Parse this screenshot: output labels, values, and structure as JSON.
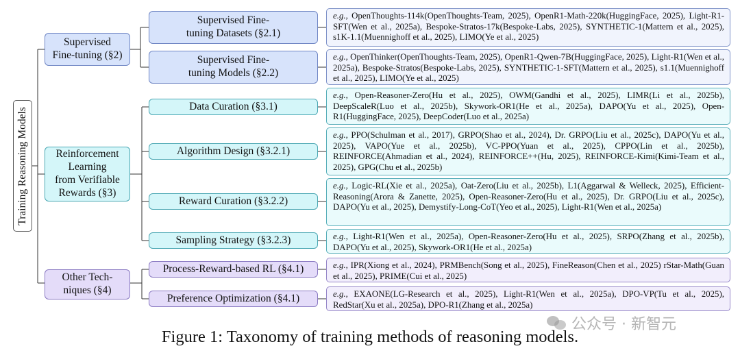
{
  "root": {
    "label": "Training Reasoning Models"
  },
  "categories": {
    "sft": {
      "label_line1": "Supervised",
      "label_line2": "Fine-tuning (§2)"
    },
    "rl": {
      "line1": "Reinforcement",
      "line2": "Learning",
      "line3": "from Verifiable",
      "line4": "Rewards (§3)"
    },
    "other": {
      "line1": "Other Tech-",
      "line2": "niques (§4)"
    }
  },
  "nodes": [
    {
      "line1": "Supervised Fine-",
      "line2": "tuning Datasets (§2.1)",
      "eg": "e.g.,",
      "refs": " OpenThoughts-114k(OpenThoughts-Team, 2025), OpenR1-Math-220k(HuggingFace, 2025), Light-R1-SFT(Wen et al., 2025a), Bespoke-Stratos-17k(Bespoke-Labs, 2025), SYNTHETIC-1(Mattern et al., 2025), s1K-1.1(Muennighoff et al., 2025), LIMO(Ye et al., 2025)"
    },
    {
      "line1": "Supervised Fine-",
      "line2": "tuning Models (§2.2)",
      "eg": "e.g.,",
      "refs": " OpenThinker(OpenThoughts-Team, 2025), OpenR1-Qwen-7B(HuggingFace, 2025), Light-R1(Wen et al., 2025a), Bespoke-Stratos(Bespoke-Labs, 2025), SYNTHETIC-1-SFT(Mattern et al., 2025), s1.1(Muennighoff et al., 2025), LIMO(Ye et al., 2025)"
    },
    {
      "line1": "Data Curation (§3.1)",
      "eg": "e.g.,",
      "refs": " Open-Reasoner-Zero(Hu et al., 2025), OWM(Gandhi et al., 2025), LIMR(Li et al., 2025b), DeepScaleR(Luo et al., 2025b), Skywork-OR1(He et al., 2025a), DAPO(Yu et al., 2025), Open-R1(HuggingFace, 2025), DeepCoder(Luo et al., 2025a)"
    },
    {
      "line1": "Algorithm Design (§3.2.1)",
      "eg": "e.g.,",
      "refs": " PPO(Schulman et al., 2017), GRPO(Shao et al., 2024), Dr. GRPO(Liu et al., 2025c), DAPO(Yu et al., 2025), VAPO(Yue et al., 2025b), VC-PPO(Yuan et al., 2025), CPPO(Lin et al., 2025b), REINFORCE(Ahmadian et al., 2024), REINFORCE++(Hu, 2025), REINFORCE-Kimi(Kimi-Team et al., 2025), GPG(Chu et al., 2025b)"
    },
    {
      "line1": "Reward Curation (§3.2.2)",
      "eg": "e.g.,",
      "refs": " Logic-RL(Xie et al., 2025a), Oat-Zero(Liu et al., 2025b), L1(Aggarwal & Welleck, 2025), Efficient-Reasoning(Arora & Zanette, 2025), Open-Reasoner-Zero(Hu et al., 2025), Dr. GRPO(Liu et al., 2025c), DAPO(Yu et al., 2025), Demystify-Long-CoT(Yeo et al., 2025), Light-R1(Wen et al., 2025a)"
    },
    {
      "line1": "Sampling Strategy (§3.2.3)",
      "eg": "e.g.,",
      "refs": " Light-R1(Wen et al., 2025a), Open-Reasoner-Zero(Hu et al., 2025), SRPO(Zhang et al., 2025b), DAPO(Yu et al., 2025), Skywork-OR1(He et al., 2025a)"
    },
    {
      "line1": "Process-Reward-based RL (§4.1)",
      "eg": "e.g.,",
      "refs": " IPR(Xiong et al., 2024), PRMBench(Song et al., 2025), FineReason(Chen et al., 2025) rStar-Math(Guan et al., 2025), PRIME(Cui et al., 2025)"
    },
    {
      "line1": "Preference Optimization (§4.1)",
      "eg": "e.g.,",
      "refs": " EXAONE(LG-Research et al., 2025), Light-R1(Wen et al., 2025a), DPO-VP(Tu et al., 2025), RedStar(Xu et al., 2025a), DPO-R1(Zhang et al., 2025a)"
    }
  ],
  "caption": "Figure 1: Taxonomy of training methods of reasoning models.",
  "watermark": "公众号 · 新智元",
  "colors": {
    "sft_fill": "#d7e3fb",
    "rl_fill": "#d4f6f9",
    "other_fill": "#e4dcf9",
    "sft_leaf": "#f1f4fd",
    "rl_leaf": "#eafbfc",
    "other_leaf": "#f2eefc",
    "line": "#333333"
  }
}
